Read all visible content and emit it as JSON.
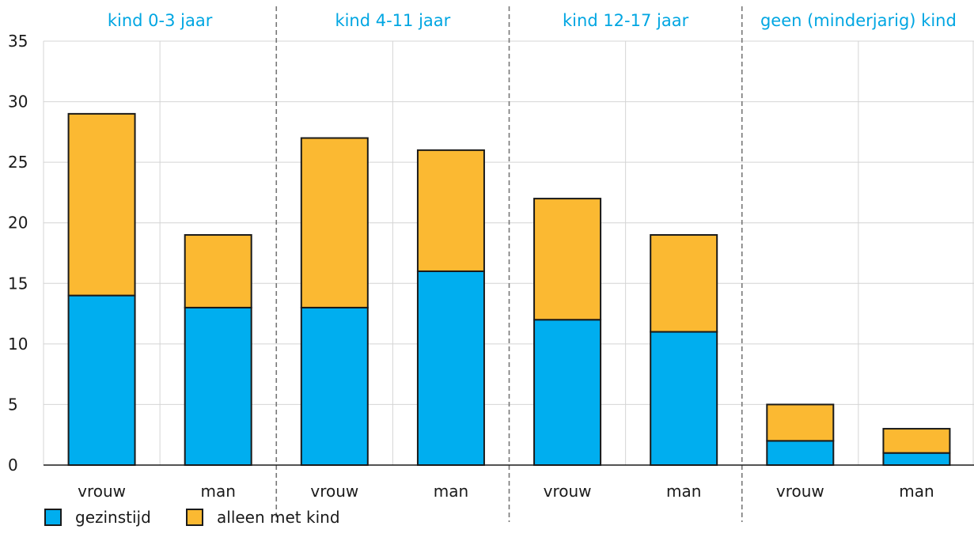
{
  "chart_data": {
    "type": "bar",
    "stacked": true,
    "groups": [
      "kind 0-3 jaar",
      "kind 4-11 jaar",
      "kind 12-17 jaar",
      "geen (minderjarig) kind"
    ],
    "categories": [
      "vrouw",
      "man",
      "vrouw",
      "man",
      "vrouw",
      "man",
      "vrouw",
      "man"
    ],
    "series": [
      {
        "name": "gezinstijd",
        "color": "#00aeef",
        "values": [
          14,
          13,
          13,
          16,
          12,
          11,
          2,
          1
        ]
      },
      {
        "name": "alleen met kind",
        "color": "#fbb932",
        "values": [
          15,
          6,
          14,
          10,
          10,
          8,
          3,
          2
        ]
      }
    ],
    "yticks": [
      0,
      5,
      10,
      15,
      20,
      25,
      30,
      35
    ],
    "ylim": [
      0,
      35
    ],
    "grid": true,
    "legend_position": "bottom-left"
  }
}
